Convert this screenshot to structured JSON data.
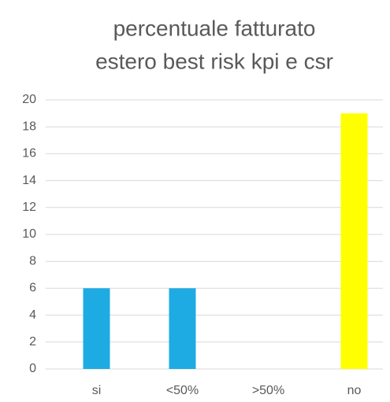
{
  "chart_data": {
    "type": "bar",
    "title": [
      "percentuale fatturato",
      "estero best risk kpi e csr"
    ],
    "categories": [
      "si",
      "<50%",
      ">50%",
      "no"
    ],
    "values": [
      6,
      6,
      0,
      19
    ],
    "colors": [
      "#1eabe3",
      "#1eabe3",
      "#1eabe3",
      "#ffff00"
    ],
    "ylim": [
      0,
      20
    ],
    "yticks": [
      0,
      2,
      4,
      6,
      8,
      10,
      12,
      14,
      16,
      18,
      20
    ],
    "grid": true
  }
}
